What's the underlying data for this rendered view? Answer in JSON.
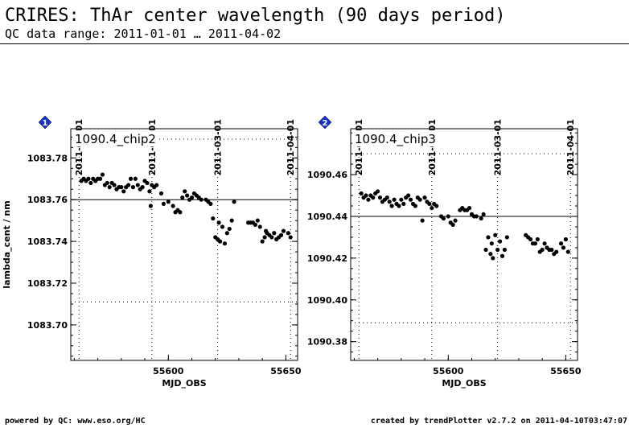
{
  "header": {
    "title": "CRIRES: ThAr center wavelength (90 days period)",
    "subtitle": "QC data range: 2011-01-01 … 2011-04-02"
  },
  "footer": {
    "left": "powered by QC: www.eso.org/HC",
    "right": "created by trendPlotter v2.7.2 on 2011-04-10T03:47:07"
  },
  "colors": {
    "marker": "#1533c8",
    "points": "#000000",
    "grid": "#000000"
  },
  "chart_data": [
    {
      "type": "scatter",
      "badge": "1",
      "panel_label": "1090.4_chip2",
      "xlabel": "MJD_OBS",
      "ylabel": "lambda_cent / nm",
      "xlim": [
        55558.5,
        55655
      ],
      "ylim": [
        1083.683,
        1083.794
      ],
      "xticks": [
        55600,
        55650
      ],
      "yticks": [
        1083.7,
        1083.72,
        1083.74,
        1083.76,
        1083.78
      ],
      "ytick_labels": [
        "1083.70",
        "1083.72",
        "1083.74",
        "1083.76",
        "1083.78"
      ],
      "date_ticks": [
        {
          "label": "2011-01-01",
          "mjd": 55562
        },
        {
          "label": "2011-02-01",
          "mjd": 55593
        },
        {
          "label": "2011-03-01",
          "mjd": 55621
        },
        {
          "label": "2011-04-01",
          "mjd": 55652
        }
      ],
      "reference_line": 1083.76,
      "limit_lines": [
        1083.711,
        1083.789
      ],
      "points": [
        [
          55563,
          1083.769
        ],
        [
          55564,
          1083.77
        ],
        [
          55565,
          1083.769
        ],
        [
          55566,
          1083.77
        ],
        [
          55567,
          1083.768
        ],
        [
          55568,
          1083.77
        ],
        [
          55569,
          1083.769
        ],
        [
          55570,
          1083.77
        ],
        [
          55571,
          1083.77
        ],
        [
          55572,
          1083.772
        ],
        [
          55573,
          1083.767
        ],
        [
          55574,
          1083.768
        ],
        [
          55575,
          1083.766
        ],
        [
          55576,
          1083.768
        ],
        [
          55577,
          1083.767
        ],
        [
          55578,
          1083.765
        ],
        [
          55579,
          1083.766
        ],
        [
          55580,
          1083.766
        ],
        [
          55581,
          1083.764
        ],
        [
          55582,
          1083.766
        ],
        [
          55583,
          1083.767
        ],
        [
          55584,
          1083.77
        ],
        [
          55585,
          1083.766
        ],
        [
          55586,
          1083.77
        ],
        [
          55587,
          1083.767
        ],
        [
          55588,
          1083.765
        ],
        [
          55589,
          1083.766
        ],
        [
          55590,
          1083.769
        ],
        [
          55591,
          1083.768
        ],
        [
          55592,
          1083.764
        ],
        [
          55592.5,
          1083.757
        ],
        [
          55593,
          1083.767
        ],
        [
          55594,
          1083.766
        ],
        [
          55595,
          1083.767
        ],
        [
          55597,
          1083.763
        ],
        [
          55598,
          1083.758
        ],
        [
          55600,
          1083.759
        ],
        [
          55602,
          1083.757
        ],
        [
          55603,
          1083.754
        ],
        [
          55604,
          1083.755
        ],
        [
          55605,
          1083.754
        ],
        [
          55606,
          1083.761
        ],
        [
          55607,
          1083.764
        ],
        [
          55608,
          1083.762
        ],
        [
          55609,
          1083.76
        ],
        [
          55610,
          1083.761
        ],
        [
          55611,
          1083.763
        ],
        [
          55612,
          1083.762
        ],
        [
          55613,
          1083.761
        ],
        [
          55614,
          1083.76
        ],
        [
          55616,
          1083.76
        ],
        [
          55617,
          1083.759
        ],
        [
          55618,
          1083.758
        ],
        [
          55619,
          1083.751
        ],
        [
          55620,
          1083.742
        ],
        [
          55621,
          1083.741
        ],
        [
          55621.5,
          1083.749
        ],
        [
          55622,
          1083.74
        ],
        [
          55623,
          1083.747
        ],
        [
          55624,
          1083.739
        ],
        [
          55625,
          1083.744
        ],
        [
          55626,
          1083.746
        ],
        [
          55627,
          1083.75
        ],
        [
          55628,
          1083.759
        ],
        [
          55634,
          1083.749
        ],
        [
          55635,
          1083.749
        ],
        [
          55636,
          1083.749
        ],
        [
          55637,
          1083.748
        ],
        [
          55638,
          1083.75
        ],
        [
          55639,
          1083.747
        ],
        [
          55640,
          1083.74
        ],
        [
          55641,
          1083.742
        ],
        [
          55641.5,
          1083.745
        ],
        [
          55642,
          1083.744
        ],
        [
          55643,
          1083.743
        ],
        [
          55644,
          1083.742
        ],
        [
          55645,
          1083.744
        ],
        [
          55646,
          1083.741
        ],
        [
          55647,
          1083.742
        ],
        [
          55648,
          1083.743
        ],
        [
          55649,
          1083.745
        ],
        [
          55651,
          1083.744
        ],
        [
          55652,
          1083.742
        ]
      ]
    },
    {
      "type": "scatter",
      "badge": "2",
      "panel_label": "1090.4_chip3",
      "xlabel": "MJD_OBS",
      "ylabel": "",
      "xlim": [
        55558.5,
        55655
      ],
      "ylim": [
        1090.371,
        1090.482
      ],
      "xticks": [
        55600,
        55650
      ],
      "yticks": [
        1090.38,
        1090.4,
        1090.42,
        1090.44,
        1090.46
      ],
      "ytick_labels": [
        "1090.38",
        "1090.40",
        "1090.42",
        "1090.44",
        "1090.46"
      ],
      "date_ticks": [
        {
          "label": "2011-01-01",
          "mjd": 55562
        },
        {
          "label": "2011-02-01",
          "mjd": 55593
        },
        {
          "label": "2011-03-01",
          "mjd": 55621
        },
        {
          "label": "2011-04-01",
          "mjd": 55652
        }
      ],
      "reference_line": 1090.44,
      "limit_lines": [
        1090.389,
        1090.47
      ],
      "points": [
        [
          55563,
          1090.451
        ],
        [
          55564,
          1090.449
        ],
        [
          55565,
          1090.45
        ],
        [
          55566,
          1090.448
        ],
        [
          55567,
          1090.45
        ],
        [
          55568,
          1090.449
        ],
        [
          55569,
          1090.451
        ],
        [
          55570,
          1090.452
        ],
        [
          55571,
          1090.449
        ],
        [
          55572,
          1090.447
        ],
        [
          55573,
          1090.448
        ],
        [
          55574,
          1090.449
        ],
        [
          55575,
          1090.447
        ],
        [
          55576,
          1090.445
        ],
        [
          55577,
          1090.448
        ],
        [
          55578,
          1090.446
        ],
        [
          55579,
          1090.445
        ],
        [
          55580,
          1090.448
        ],
        [
          55581,
          1090.446
        ],
        [
          55582,
          1090.449
        ],
        [
          55583,
          1090.45
        ],
        [
          55584,
          1090.448
        ],
        [
          55585,
          1090.446
        ],
        [
          55586,
          1090.445
        ],
        [
          55587,
          1090.449
        ],
        [
          55588,
          1090.448
        ],
        [
          55589,
          1090.438
        ],
        [
          55590,
          1090.449
        ],
        [
          55591,
          1090.447
        ],
        [
          55592,
          1090.446
        ],
        [
          55593,
          1090.444
        ],
        [
          55594,
          1090.446
        ],
        [
          55595,
          1090.445
        ],
        [
          55597,
          1090.44
        ],
        [
          55598,
          1090.439
        ],
        [
          55600,
          1090.44
        ],
        [
          55601,
          1090.437
        ],
        [
          55602,
          1090.436
        ],
        [
          55603,
          1090.438
        ],
        [
          55605,
          1090.443
        ],
        [
          55606,
          1090.444
        ],
        [
          55607,
          1090.443
        ],
        [
          55608,
          1090.443
        ],
        [
          55609,
          1090.444
        ],
        [
          55610,
          1090.441
        ],
        [
          55611,
          1090.44
        ],
        [
          55612,
          1090.44
        ],
        [
          55614,
          1090.439
        ],
        [
          55615,
          1090.441
        ],
        [
          55616,
          1090.424
        ],
        [
          55617,
          1090.43
        ],
        [
          55618,
          1090.422
        ],
        [
          55618.5,
          1090.427
        ],
        [
          55619,
          1090.42
        ],
        [
          55620,
          1090.431
        ],
        [
          55621,
          1090.424
        ],
        [
          55622,
          1090.428
        ],
        [
          55623,
          1090.421
        ],
        [
          55624,
          1090.424
        ],
        [
          55625,
          1090.43
        ],
        [
          55633,
          1090.431
        ],
        [
          55634,
          1090.43
        ],
        [
          55635,
          1090.429
        ],
        [
          55636,
          1090.427
        ],
        [
          55637,
          1090.427
        ],
        [
          55638,
          1090.429
        ],
        [
          55639,
          1090.423
        ],
        [
          55640,
          1090.424
        ],
        [
          55641,
          1090.427
        ],
        [
          55642,
          1090.425
        ],
        [
          55643,
          1090.424
        ],
        [
          55644,
          1090.424
        ],
        [
          55645,
          1090.422
        ],
        [
          55646,
          1090.423
        ],
        [
          55648,
          1090.427
        ],
        [
          55649,
          1090.425
        ],
        [
          55650,
          1090.429
        ],
        [
          55651,
          1090.423
        ]
      ]
    }
  ]
}
